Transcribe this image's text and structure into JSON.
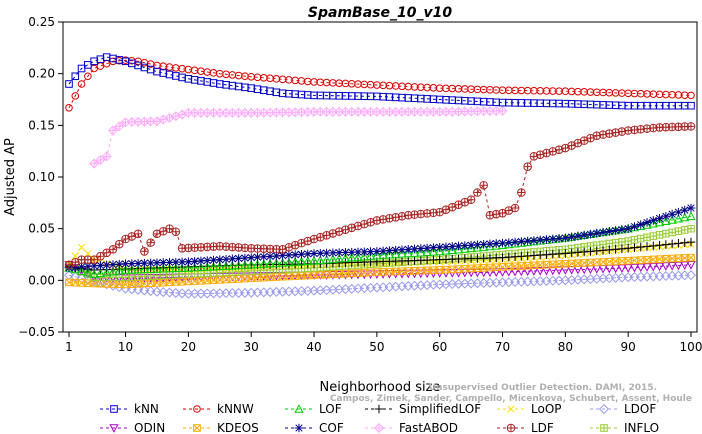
{
  "chart_data": {
    "type": "line",
    "title": "SpamBase_10_v10",
    "xlabel": "Neighborhood size",
    "ylabel": "Adjusted AP",
    "xlim": [
      1,
      100
    ],
    "ylim": [
      -0.05,
      0.25
    ],
    "x_ticks": [
      "1",
      "10",
      "20",
      "30",
      "40",
      "50",
      "60",
      "70",
      "80",
      "90",
      "100"
    ],
    "y_ticks": [
      "−0.05",
      "0.00",
      "0.05",
      "0.10",
      "0.15",
      "0.20",
      "0.25"
    ],
    "legend_position": "bottom",
    "grid": false,
    "watermark": [
      "Campos, Zimek, Sander, Campello, Micenkova, Schubert, Assent, Houle",
      "Unsupervised Outlier Detection. DAMI, 2015."
    ],
    "series": [
      {
        "name": "kNN",
        "color": "#0000cc",
        "marker": "square",
        "points": [
          [
            1,
            0.19
          ],
          [
            3,
            0.205
          ],
          [
            5,
            0.212
          ],
          [
            7,
            0.216
          ],
          [
            10,
            0.212
          ],
          [
            12,
            0.208
          ],
          [
            15,
            0.202
          ],
          [
            20,
            0.195
          ],
          [
            25,
            0.19
          ],
          [
            30,
            0.186
          ],
          [
            35,
            0.181
          ],
          [
            40,
            0.179
          ],
          [
            50,
            0.178
          ],
          [
            60,
            0.175
          ],
          [
            70,
            0.172
          ],
          [
            80,
            0.171
          ],
          [
            90,
            0.169
          ],
          [
            100,
            0.169
          ]
        ]
      },
      {
        "name": "kNNW",
        "color": "#dd0000",
        "marker": "circle",
        "points": [
          [
            1,
            0.167
          ],
          [
            3,
            0.19
          ],
          [
            5,
            0.205
          ],
          [
            8,
            0.212
          ],
          [
            10,
            0.213
          ],
          [
            12,
            0.212
          ],
          [
            15,
            0.208
          ],
          [
            20,
            0.204
          ],
          [
            25,
            0.2
          ],
          [
            30,
            0.197
          ],
          [
            40,
            0.192
          ],
          [
            50,
            0.189
          ],
          [
            60,
            0.186
          ],
          [
            70,
            0.184
          ],
          [
            80,
            0.183
          ],
          [
            90,
            0.181
          ],
          [
            100,
            0.179
          ]
        ]
      },
      {
        "name": "LOF",
        "color": "#00cc00",
        "marker": "triangle",
        "points": [
          [
            1,
            0.012
          ],
          [
            5,
            0.006
          ],
          [
            10,
            0.01
          ],
          [
            20,
            0.012
          ],
          [
            30,
            0.015
          ],
          [
            40,
            0.019
          ],
          [
            50,
            0.024
          ],
          [
            60,
            0.028
          ],
          [
            70,
            0.034
          ],
          [
            80,
            0.041
          ],
          [
            90,
            0.05
          ],
          [
            100,
            0.062
          ]
        ]
      },
      {
        "name": "SimplifiedLOF",
        "color": "#000000",
        "marker": "plus",
        "points": [
          [
            1,
            0.013
          ],
          [
            5,
            0.01
          ],
          [
            10,
            0.011
          ],
          [
            20,
            0.013
          ],
          [
            30,
            0.015
          ],
          [
            40,
            0.016
          ],
          [
            50,
            0.018
          ],
          [
            60,
            0.02
          ],
          [
            70,
            0.022
          ],
          [
            80,
            0.026
          ],
          [
            90,
            0.031
          ],
          [
            100,
            0.037
          ]
        ]
      },
      {
        "name": "LoOP",
        "color": "#ffdd00",
        "marker": "x",
        "points": [
          [
            1,
            0.015
          ],
          [
            3,
            0.032
          ],
          [
            5,
            0.02
          ],
          [
            10,
            0.011
          ],
          [
            20,
            0.01
          ],
          [
            30,
            0.012
          ],
          [
            40,
            0.014
          ],
          [
            50,
            0.016
          ],
          [
            60,
            0.018
          ],
          [
            70,
            0.02
          ],
          [
            80,
            0.024
          ],
          [
            90,
            0.03
          ],
          [
            100,
            0.035
          ]
        ]
      },
      {
        "name": "LDOF",
        "color": "#9999ee",
        "marker": "diamond",
        "points": [
          [
            1,
            0.005
          ],
          [
            5,
            -0.001
          ],
          [
            10,
            -0.008
          ],
          [
            15,
            -0.011
          ],
          [
            20,
            -0.013
          ],
          [
            30,
            -0.012
          ],
          [
            40,
            -0.01
          ],
          [
            50,
            -0.007
          ],
          [
            60,
            -0.004
          ],
          [
            70,
            -0.002
          ],
          [
            80,
            0.0
          ],
          [
            90,
            0.003
          ],
          [
            100,
            0.005
          ]
        ]
      },
      {
        "name": "ODIN",
        "color": "#aa00cc",
        "marker": "triangle-down",
        "points": [
          [
            1,
            0.015
          ],
          [
            5,
            0.003
          ],
          [
            10,
            0.002
          ],
          [
            20,
            0.003
          ],
          [
            30,
            0.004
          ],
          [
            40,
            0.005
          ],
          [
            50,
            0.006
          ],
          [
            60,
            0.007
          ],
          [
            70,
            0.008
          ],
          [
            80,
            0.01
          ],
          [
            90,
            0.012
          ],
          [
            100,
            0.015
          ]
        ]
      },
      {
        "name": "KDEOS",
        "color": "#ffaa00",
        "marker": "square-x",
        "points": [
          [
            1,
            -0.002
          ],
          [
            5,
            -0.003
          ],
          [
            10,
            -0.004
          ],
          [
            20,
            -0.001
          ],
          [
            30,
            0.002
          ],
          [
            40,
            0.005
          ],
          [
            50,
            0.008
          ],
          [
            60,
            0.01
          ],
          [
            70,
            0.013
          ],
          [
            80,
            0.016
          ],
          [
            90,
            0.019
          ],
          [
            100,
            0.022
          ]
        ]
      },
      {
        "name": "COF",
        "color": "#000088",
        "marker": "star",
        "points": [
          [
            1,
            0.012
          ],
          [
            5,
            0.014
          ],
          [
            10,
            0.016
          ],
          [
            20,
            0.018
          ],
          [
            30,
            0.022
          ],
          [
            40,
            0.026
          ],
          [
            50,
            0.028
          ],
          [
            60,
            0.032
          ],
          [
            70,
            0.036
          ],
          [
            80,
            0.041
          ],
          [
            90,
            0.05
          ],
          [
            100,
            0.07
          ]
        ]
      },
      {
        "name": "FastABOD",
        "color": "#ffaaff",
        "marker": "diamond-plus",
        "points": [
          [
            5,
            0.113
          ],
          [
            7,
            0.12
          ],
          [
            8,
            0.145
          ],
          [
            10,
            0.153
          ],
          [
            15,
            0.154
          ],
          [
            20,
            0.162
          ],
          [
            30,
            0.162
          ],
          [
            40,
            0.163
          ],
          [
            50,
            0.163
          ],
          [
            60,
            0.163
          ],
          [
            70,
            0.164
          ]
        ]
      },
      {
        "name": "LDF",
        "color": "#aa2222",
        "marker": "circle-plus",
        "points": [
          [
            1,
            0.015
          ],
          [
            3,
            0.02
          ],
          [
            5,
            0.02
          ],
          [
            8,
            0.03
          ],
          [
            10,
            0.04
          ],
          [
            12,
            0.045
          ],
          [
            13,
            0.028
          ],
          [
            15,
            0.045
          ],
          [
            17,
            0.05
          ],
          [
            18,
            0.047
          ],
          [
            19,
            0.031
          ],
          [
            25,
            0.033
          ],
          [
            30,
            0.031
          ],
          [
            35,
            0.03
          ],
          [
            40,
            0.04
          ],
          [
            45,
            0.049
          ],
          [
            50,
            0.058
          ],
          [
            55,
            0.063
          ],
          [
            60,
            0.066
          ],
          [
            65,
            0.078
          ],
          [
            67,
            0.092
          ],
          [
            68,
            0.063
          ],
          [
            70,
            0.065
          ],
          [
            72,
            0.07
          ],
          [
            73,
            0.085
          ],
          [
            74,
            0.11
          ],
          [
            75,
            0.12
          ],
          [
            80,
            0.128
          ],
          [
            85,
            0.14
          ],
          [
            90,
            0.145
          ],
          [
            95,
            0.148
          ],
          [
            100,
            0.149
          ]
        ]
      },
      {
        "name": "INFLO",
        "color": "#99cc33",
        "marker": "square-plus",
        "points": [
          [
            1,
            0.014
          ],
          [
            5,
            0.003
          ],
          [
            10,
            0.003
          ],
          [
            20,
            0.006
          ],
          [
            30,
            0.009
          ],
          [
            40,
            0.012
          ],
          [
            50,
            0.016
          ],
          [
            60,
            0.02
          ],
          [
            70,
            0.025
          ],
          [
            80,
            0.03
          ],
          [
            90,
            0.038
          ],
          [
            100,
            0.05
          ]
        ]
      }
    ]
  }
}
